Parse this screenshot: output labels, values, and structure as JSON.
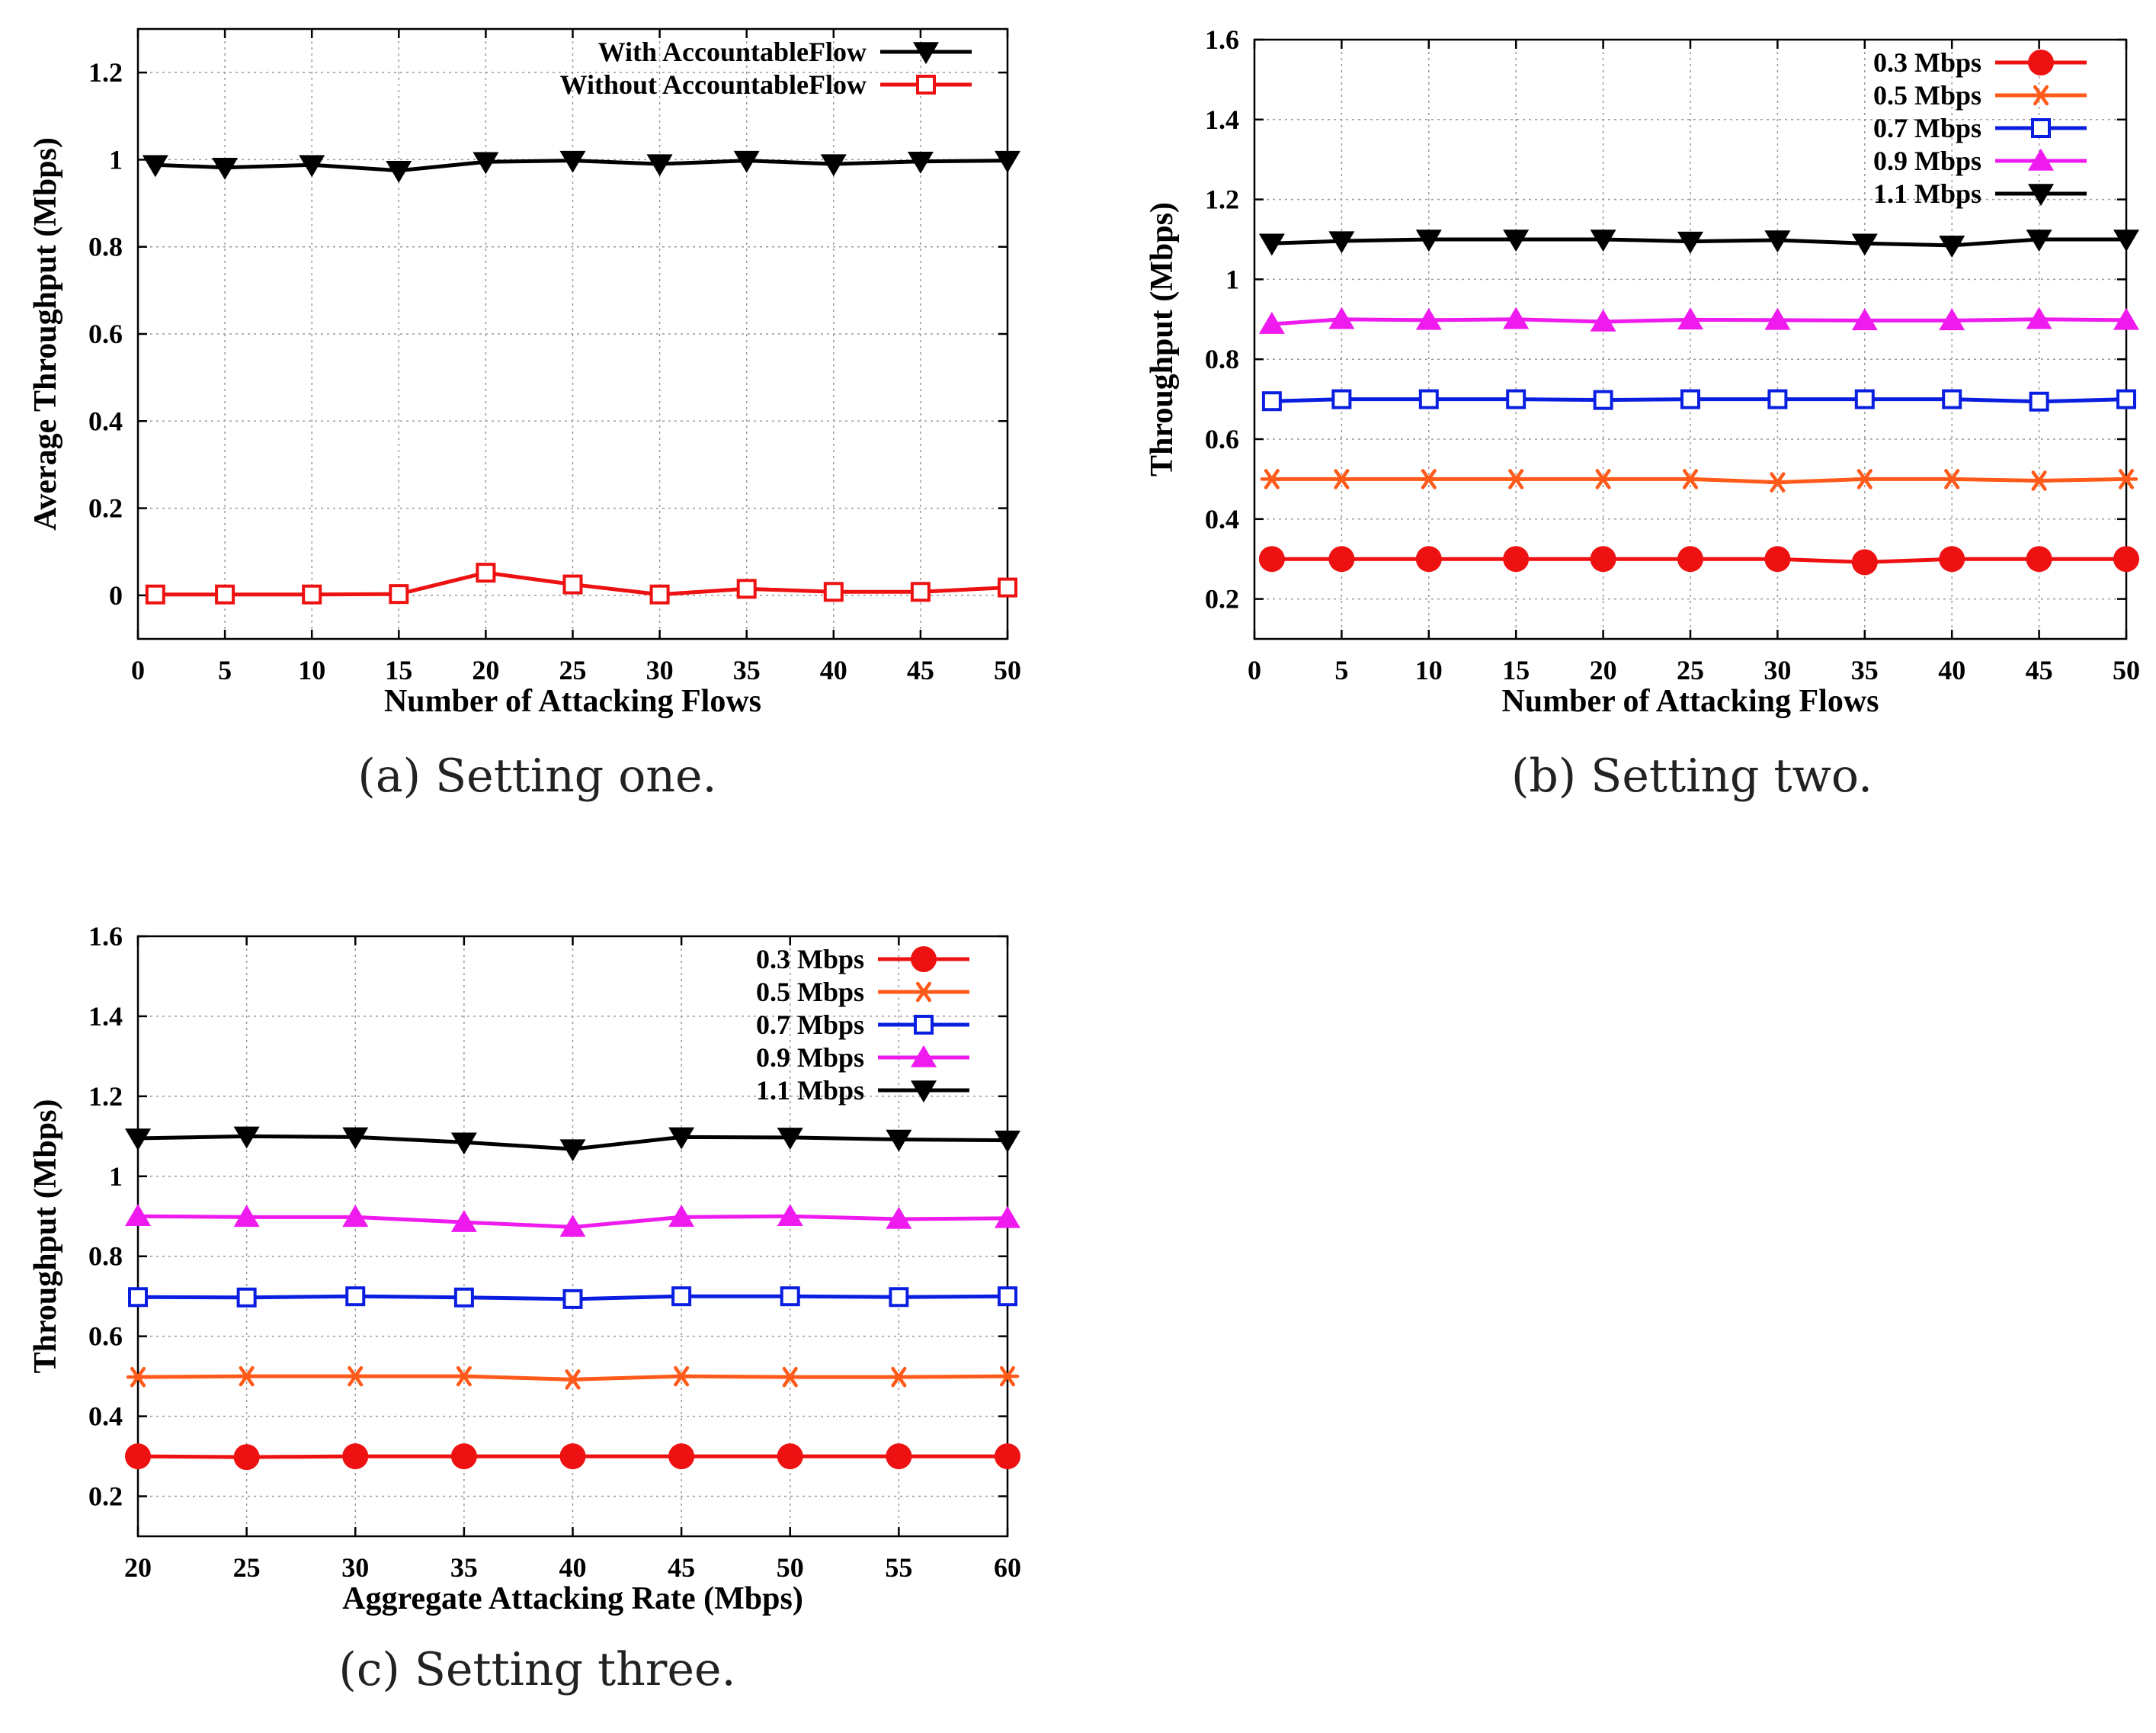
{
  "chart_data": [
    {
      "id": "a",
      "type": "line",
      "xlabel": "Number of Attacking Flows",
      "ylabel": "Average Throughput (Mbps)",
      "xlim": [
        0,
        50
      ],
      "ylim": [
        -0.1,
        1.3
      ],
      "xticks": [
        0,
        5,
        10,
        15,
        20,
        25,
        30,
        35,
        40,
        45,
        50
      ],
      "yticks": [
        0,
        0.2,
        0.4,
        0.6,
        0.8,
        1,
        1.2
      ],
      "grid": true,
      "legend_position": "top-right",
      "caption": "(a) Setting one.",
      "x": [
        1,
        5,
        10,
        15,
        20,
        25,
        30,
        35,
        40,
        45,
        50
      ],
      "series": [
        {
          "name": "With AccountableFlow",
          "color": "#000000",
          "marker": "triangle-down",
          "values": [
            0.988,
            0.982,
            0.988,
            0.975,
            0.995,
            0.998,
            0.99,
            0.998,
            0.99,
            0.996,
            0.998
          ]
        },
        {
          "name": "Without AccountableFlow",
          "color": "#ee1111",
          "marker": "square-open",
          "values": [
            0.002,
            0.002,
            0.002,
            0.003,
            0.052,
            0.025,
            0.002,
            0.015,
            0.008,
            0.008,
            0.018
          ]
        }
      ]
    },
    {
      "id": "b",
      "type": "line",
      "xlabel": "Number of Attacking Flows",
      "ylabel": "Throughput (Mbps)",
      "xlim": [
        0,
        50
      ],
      "ylim": [
        0.1,
        1.6
      ],
      "xticks": [
        0,
        5,
        10,
        15,
        20,
        25,
        30,
        35,
        40,
        45,
        50
      ],
      "yticks": [
        0.2,
        0.4,
        0.6,
        0.8,
        1,
        1.2,
        1.4,
        1.6
      ],
      "grid": true,
      "legend_position": "top-right",
      "caption": "(b) Setting two.",
      "x": [
        1,
        5,
        10,
        15,
        20,
        25,
        30,
        35,
        40,
        45,
        50
      ],
      "series": [
        {
          "name": "0.3 Mbps",
          "color": "#ee1111",
          "marker": "circle",
          "values": [
            0.3,
            0.3,
            0.3,
            0.3,
            0.3,
            0.3,
            0.3,
            0.292,
            0.3,
            0.3,
            0.3
          ]
        },
        {
          "name": "0.5 Mbps",
          "color": "#ff5a1a",
          "marker": "asterisk",
          "values": [
            0.5,
            0.5,
            0.5,
            0.5,
            0.5,
            0.5,
            0.492,
            0.5,
            0.5,
            0.496,
            0.5
          ]
        },
        {
          "name": "0.7 Mbps",
          "color": "#0a1ee0",
          "marker": "square-open",
          "values": [
            0.695,
            0.7,
            0.7,
            0.7,
            0.698,
            0.7,
            0.7,
            0.7,
            0.7,
            0.694,
            0.7
          ]
        },
        {
          "name": "0.9 Mbps",
          "color": "#ee1aee",
          "marker": "triangle-up",
          "values": [
            0.888,
            0.9,
            0.898,
            0.9,
            0.894,
            0.899,
            0.898,
            0.897,
            0.897,
            0.9,
            0.898
          ]
        },
        {
          "name": "1.1 Mbps",
          "color": "#000000",
          "marker": "triangle-down",
          "values": [
            1.09,
            1.096,
            1.1,
            1.1,
            1.1,
            1.095,
            1.098,
            1.09,
            1.085,
            1.1,
            1.1
          ]
        }
      ]
    },
    {
      "id": "c",
      "type": "line",
      "xlabel": "Aggregate Attacking Rate (Mbps)",
      "ylabel": "Throughput (Mbps)",
      "xlim": [
        20,
        60
      ],
      "ylim": [
        0.1,
        1.6
      ],
      "xticks": [
        20,
        25,
        30,
        35,
        40,
        45,
        50,
        55,
        60
      ],
      "yticks": [
        0.2,
        0.4,
        0.6,
        0.8,
        1,
        1.2,
        1.4,
        1.6
      ],
      "grid": true,
      "legend_position": "top-right",
      "caption": "(c) Setting three.",
      "x": [
        20,
        25,
        30,
        35,
        40,
        45,
        50,
        55,
        60
      ],
      "series": [
        {
          "name": "0.3 Mbps",
          "color": "#ee1111",
          "marker": "circle",
          "values": [
            0.3,
            0.298,
            0.3,
            0.3,
            0.3,
            0.3,
            0.3,
            0.3,
            0.3
          ]
        },
        {
          "name": "0.5 Mbps",
          "color": "#ff5a1a",
          "marker": "asterisk",
          "values": [
            0.498,
            0.5,
            0.5,
            0.5,
            0.492,
            0.5,
            0.498,
            0.498,
            0.5
          ]
        },
        {
          "name": "0.7 Mbps",
          "color": "#0a1ee0",
          "marker": "square-open",
          "values": [
            0.698,
            0.697,
            0.7,
            0.697,
            0.693,
            0.7,
            0.7,
            0.698,
            0.7
          ]
        },
        {
          "name": "0.9 Mbps",
          "color": "#ee1aee",
          "marker": "triangle-up",
          "values": [
            0.9,
            0.898,
            0.898,
            0.885,
            0.873,
            0.898,
            0.9,
            0.893,
            0.895
          ]
        },
        {
          "name": "1.1 Mbps",
          "color": "#000000",
          "marker": "triangle-down",
          "values": [
            1.095,
            1.1,
            1.098,
            1.085,
            1.068,
            1.098,
            1.097,
            1.092,
            1.09
          ]
        }
      ]
    }
  ]
}
